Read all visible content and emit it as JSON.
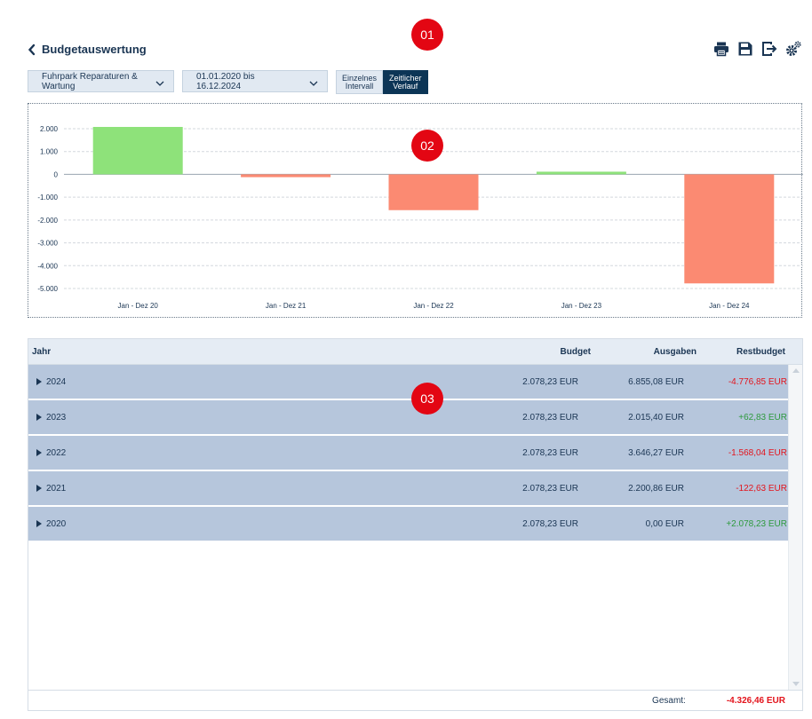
{
  "markers": [
    "01",
    "02",
    "03"
  ],
  "header": {
    "title": "Budgetauswertung",
    "icons": [
      "print-icon",
      "save-icon",
      "export-icon",
      "settings-icon"
    ]
  },
  "filters": {
    "category": "Fuhrpark Reparaturen & Wartung",
    "daterange": "01.01.2020 bis 16.12.2024",
    "toggle_single_line1": "Einzelnes",
    "toggle_single_line2": "Intervall",
    "toggle_time_line1": "Zeitlicher",
    "toggle_time_line2": "Verlauf",
    "active_toggle": "time"
  },
  "colors": {
    "positive": "#8ee27a",
    "negative": "#fb8a72",
    "accent": "#0c3556"
  },
  "chart_data": {
    "type": "bar",
    "categories": [
      "Jan - Dez 20",
      "Jan - Dez 21",
      "Jan - Dez 22",
      "Jan - Dez 23",
      "Jan - Dez 24"
    ],
    "values": [
      2078.23,
      -122.63,
      -1568.04,
      62.83,
      -4776.85
    ],
    "yticks": [
      2000,
      1000,
      0,
      -1000,
      -2000,
      -3000,
      -4000,
      -5000
    ],
    "ytick_labels": [
      "2.000",
      "1.000",
      "0",
      "-1.000",
      "-2.000",
      "-3.000",
      "-4.000",
      "-5.000"
    ],
    "ylim": [
      -5000,
      2000
    ],
    "grid": true,
    "title": "",
    "xlabel": "",
    "ylabel": ""
  },
  "table": {
    "headers": {
      "year": "Jahr",
      "budget": "Budget",
      "spent": "Ausgaben",
      "rest": "Restbudget"
    },
    "rows": [
      {
        "year": "2024",
        "budget": "2.078,23 EUR",
        "spent": "6.855,08 EUR",
        "rest": "-4.776,85 EUR",
        "sign": "neg"
      },
      {
        "year": "2023",
        "budget": "2.078,23 EUR",
        "spent": "2.015,40 EUR",
        "rest": "+62,83 EUR",
        "sign": "pos"
      },
      {
        "year": "2022",
        "budget": "2.078,23 EUR",
        "spent": "3.646,27 EUR",
        "rest": "-1.568,04 EUR",
        "sign": "neg"
      },
      {
        "year": "2021",
        "budget": "2.078,23 EUR",
        "spent": "2.200,86 EUR",
        "rest": "-122,63 EUR",
        "sign": "neg"
      },
      {
        "year": "2020",
        "budget": "2.078,23 EUR",
        "spent": "0,00 EUR",
        "rest": "+2.078,23 EUR",
        "sign": "pos"
      }
    ],
    "footer_label": "Gesamt:",
    "footer_value": "-4.326,46 EUR"
  }
}
